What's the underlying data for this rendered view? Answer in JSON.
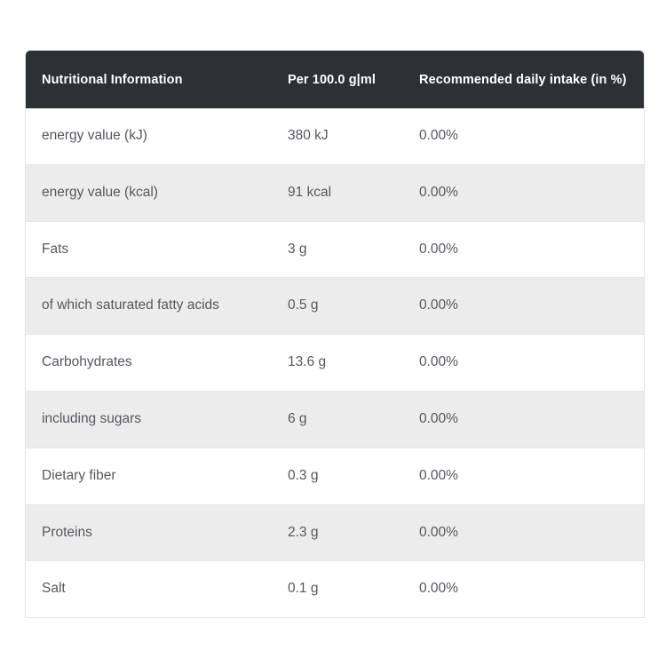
{
  "table": {
    "columns": [
      "Nutritional Information",
      "Per 100.0 g|ml",
      "Recommended daily intake (in %)"
    ],
    "rows": [
      {
        "label": "energy value (kJ)",
        "per100": "380 kJ",
        "rdi": "0.00%"
      },
      {
        "label": "energy value (kcal)",
        "per100": "91 kcal",
        "rdi": "0.00%"
      },
      {
        "label": "Fats",
        "per100": "3 g",
        "rdi": "0.00%"
      },
      {
        "label": "of which saturated fatty acids",
        "per100": "0.5 g",
        "rdi": "0.00%"
      },
      {
        "label": "Carbohydrates",
        "per100": "13.6 g",
        "rdi": "0.00%"
      },
      {
        "label": "including sugars",
        "per100": "6 g",
        "rdi": "0.00%"
      },
      {
        "label": "Dietary fiber",
        "per100": "0.3 g",
        "rdi": "0.00%"
      },
      {
        "label": "Proteins",
        "per100": "2.3 g",
        "rdi": "0.00%"
      },
      {
        "label": "Salt",
        "per100": "0.1 g",
        "rdi": "0.00%"
      }
    ]
  },
  "colors": {
    "header_bg": "#2d3136",
    "header_text": "#ffffff",
    "row_alt_bg": "#ececec",
    "row_text": "#55585e",
    "border": "#e3e5e9"
  }
}
